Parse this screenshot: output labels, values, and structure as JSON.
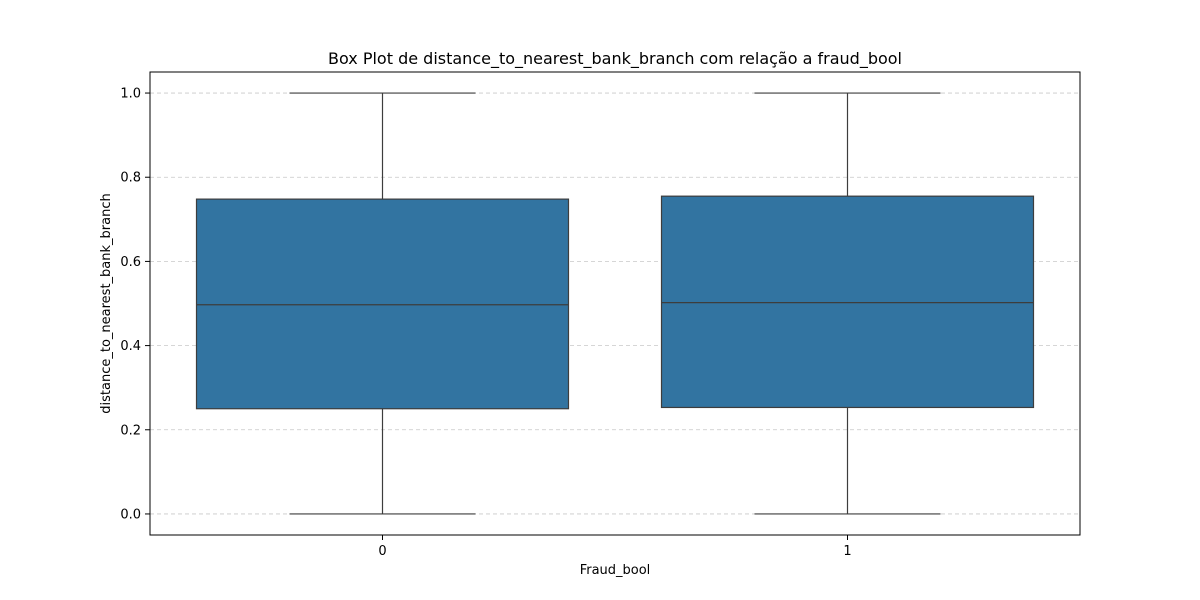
{
  "chart_data": {
    "type": "box",
    "title": "Box Plot de distance_to_nearest_bank_branch com relação a fraud_bool",
    "xlabel": "Fraud_bool",
    "ylabel": "distance_to_nearest_bank_branch",
    "categories": [
      "0",
      "1"
    ],
    "boxes": [
      {
        "category": "0",
        "whisker_low": 0.0,
        "q1": 0.25,
        "median": 0.497,
        "q3": 0.748,
        "whisker_high": 1.0
      },
      {
        "category": "1",
        "whisker_low": 0.0,
        "q1": 0.253,
        "median": 0.502,
        "q3": 0.755,
        "whisker_high": 1.0
      }
    ],
    "ylim": [
      -0.05,
      1.05
    ],
    "yticks": [
      0.0,
      0.2,
      0.4,
      0.6,
      0.8,
      1.0
    ],
    "ytick_labels": [
      "0.0",
      "0.2",
      "0.4",
      "0.6",
      "0.8",
      "1.0"
    ],
    "grid": "y-dashed",
    "colors": {
      "box_fill": "#3274a1",
      "line": "#3d3d3d",
      "grid": "#c8c8c8",
      "axis": "#000000"
    }
  }
}
